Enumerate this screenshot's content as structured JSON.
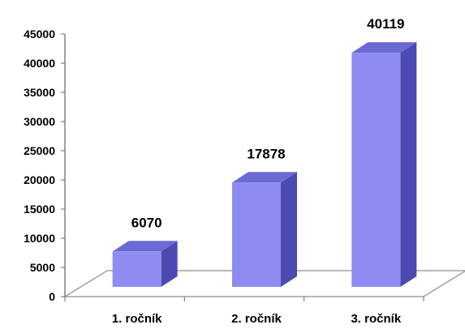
{
  "chart_data": {
    "type": "bar",
    "title": "",
    "xlabel": "",
    "ylabel": "",
    "categories": [
      "1. ročník",
      "2. ročník",
      "3. ročník"
    ],
    "values": [
      6070,
      17878,
      40119
    ],
    "data_labels": [
      "6070",
      "17878",
      "40119"
    ],
    "ylim": [
      0,
      45000
    ],
    "yticks": [
      "0",
      "5000",
      "10000",
      "15000",
      "20000",
      "25000",
      "30000",
      "35000",
      "40000",
      "45000"
    ],
    "grid": false,
    "legend": "none",
    "three_d": true,
    "colors": {
      "bar_front": "#8c8cf2",
      "bar_side": "#4a4ab2",
      "bar_top": "#6a6ad6",
      "floor": "#ffffff",
      "floor_stroke": "#a0a0a0",
      "axis": "#808080"
    }
  }
}
